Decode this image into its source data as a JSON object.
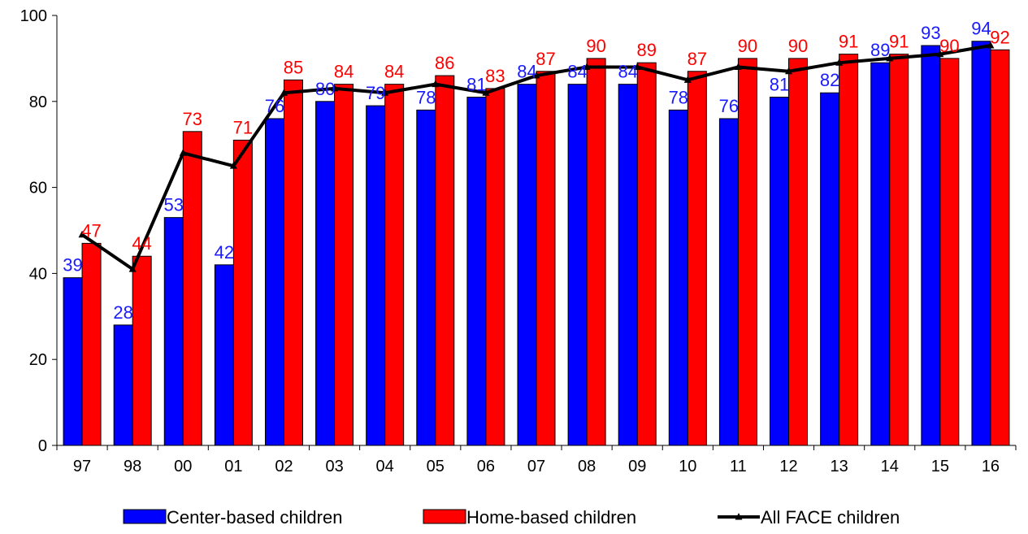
{
  "chart_data": {
    "type": "bar",
    "categories": [
      "97",
      "98",
      "00",
      "01",
      "02",
      "03",
      "04",
      "05",
      "06",
      "07",
      "08",
      "09",
      "10",
      "11",
      "12",
      "13",
      "14",
      "15",
      "16"
    ],
    "series": [
      {
        "name": "Center-based children",
        "kind": "bar",
        "color": "#0000ff",
        "label_color": "#1a1aff",
        "values": [
          39,
          28,
          53,
          42,
          76,
          80,
          79,
          78,
          81,
          84,
          84,
          84,
          78,
          76,
          81,
          82,
          89,
          93,
          94
        ]
      },
      {
        "name": "Home-based children",
        "kind": "bar",
        "color": "#ff0000",
        "label_color": "#ff0000",
        "values": [
          47,
          44,
          73,
          71,
          85,
          84,
          84,
          86,
          83,
          87,
          90,
          89,
          87,
          90,
          90,
          91,
          91,
          90,
          92
        ]
      },
      {
        "name": "All FACE children",
        "kind": "line",
        "color": "#000000",
        "values": [
          49,
          41,
          68,
          65,
          82,
          83,
          82,
          84,
          82,
          86,
          88,
          88,
          85,
          88,
          87,
          89,
          90,
          91,
          93
        ]
      }
    ],
    "y_ticks": [
      "0",
      "20",
      "40",
      "60",
      "80",
      "100"
    ],
    "ylim": [
      0,
      100
    ],
    "grid": false,
    "legend_position": "bottom",
    "title": "",
    "xlabel": "",
    "ylabel": ""
  }
}
